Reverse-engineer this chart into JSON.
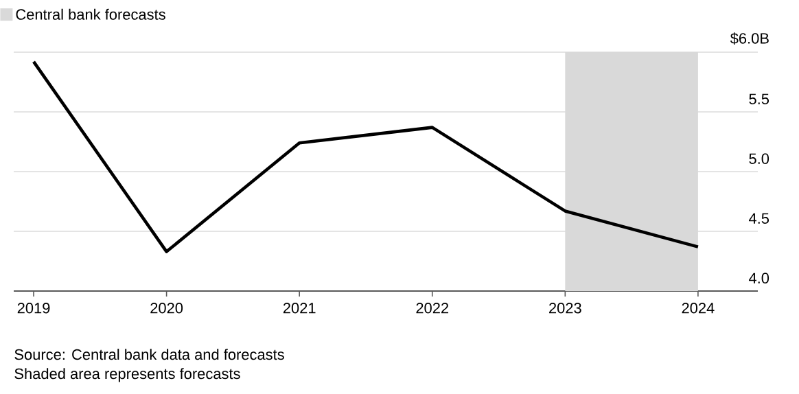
{
  "chart_data": {
    "type": "line",
    "x": [
      2019,
      2020,
      2021,
      2022,
      2023,
      2024
    ],
    "series": [
      {
        "color": "#000000",
        "values": [
          5.92,
          4.33,
          5.24,
          5.37,
          4.67,
          4.37
        ]
      }
    ],
    "xlim": [
      2018.85,
      2024.45
    ],
    "xticks": [
      2019,
      2020,
      2021,
      2022,
      2023,
      2024
    ],
    "ylim": [
      4,
      6
    ],
    "yticks": [
      {
        "value": 4,
        "label": "4.0"
      },
      4.5,
      {
        "value": 5,
        "label": "5.0"
      },
      5.5,
      {
        "value": 6.0,
        "label": "$6.0B"
      }
    ],
    "grid": "y",
    "legend": "top left",
    "marker": "none",
    "line_style": "solid",
    "bands": [
      {
        "axis": "x",
        "from": 2023,
        "to": 2024,
        "label": "Central bank forecasts",
        "color": "#d9d9d9"
      }
    ],
    "annotations": [
      "Source: Central bank data and forecasts",
      "Shaded area represents forecasts"
    ]
  }
}
